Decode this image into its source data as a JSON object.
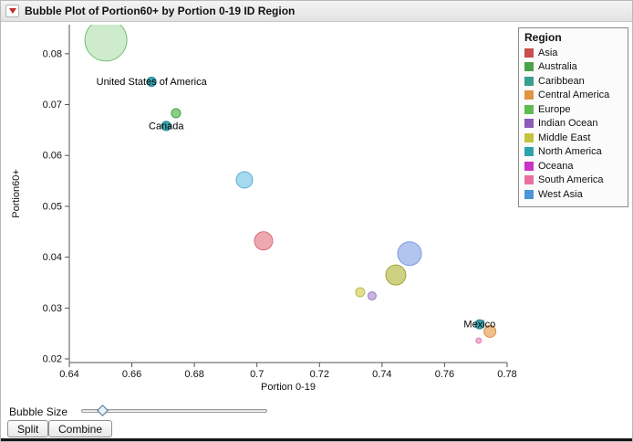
{
  "window": {
    "title": "Bubble Plot of Portion60+ by Portion 0-19 ID Region"
  },
  "controls": {
    "bubble_size_label": "Bubble Size",
    "slider_pos": 0.09,
    "split_label": "Split",
    "combine_label": "Combine"
  },
  "legend": {
    "title": "Region",
    "items": [
      {
        "label": "Asia",
        "color": "#c84d4d"
      },
      {
        "label": "Australia",
        "color": "#4ca14c"
      },
      {
        "label": "Caribbean",
        "color": "#389e8e"
      },
      {
        "label": "Central America",
        "color": "#e09542"
      },
      {
        "label": "Europe",
        "color": "#5fbc4e"
      },
      {
        "label": "Indian Ocean",
        "color": "#8e5bb8"
      },
      {
        "label": "Middle East",
        "color": "#c4c43e"
      },
      {
        "label": "North America",
        "color": "#2ea3ae"
      },
      {
        "label": "Oceana",
        "color": "#c635c6"
      },
      {
        "label": "South America",
        "color": "#e8709e"
      },
      {
        "label": "West Asia",
        "color": "#4c93d9"
      }
    ]
  },
  "chart_data": {
    "type": "scatter",
    "subtype": "bubble",
    "title": "Bubble Plot of Portion60+ by Portion 0-19 ID Region",
    "xlabel": "Portion 0-19",
    "ylabel": "Portion60+",
    "xlim": [
      0.64,
      0.78
    ],
    "ylim": [
      0.02,
      0.085
    ],
    "grid": false,
    "legend_position": "right",
    "x_ticks": [
      0.64,
      0.66,
      0.68,
      0.7,
      0.72,
      0.74,
      0.76,
      0.78
    ],
    "x_tick_labels": [
      "0.64",
      "0.66",
      "0.68",
      "0.7",
      "0.72",
      "0.74",
      "0.76",
      "0.78"
    ],
    "y_ticks": [
      0.02,
      0.03,
      0.04,
      0.05,
      0.06,
      0.07,
      0.08
    ],
    "y_tick_labels": [
      "0.02",
      "0.03",
      "0.04",
      "0.05",
      "0.06",
      "0.07",
      "0.08"
    ],
    "points": [
      {
        "x": 0.6517,
        "y": 0.0827,
        "r": 23,
        "region": "Europe",
        "label": "",
        "fill": "#9ed89e",
        "stroke": "#6fbf6f",
        "opacity": 0.5
      },
      {
        "x": 0.6663,
        "y": 0.0745,
        "r": 5,
        "region": "North America",
        "label": "United States of America",
        "fill": "#2b9faf",
        "stroke": "#17808e",
        "opacity": 0.9
      },
      {
        "x": 0.6741,
        "y": 0.0683,
        "r": 5,
        "region": "Europe",
        "label": "",
        "fill": "#6cc46c",
        "stroke": "#459e45",
        "opacity": 0.8
      },
      {
        "x": 0.671,
        "y": 0.0658,
        "r": 5,
        "region": "North America",
        "label": "Canada",
        "fill": "#2b9faf",
        "stroke": "#17808e",
        "opacity": 0.9
      },
      {
        "x": 0.696,
        "y": 0.0552,
        "r": 9,
        "region": "West Asia",
        "label": "",
        "fill": "#8ed0e8",
        "stroke": "#5fb0d4",
        "opacity": 0.8
      },
      {
        "x": 0.7021,
        "y": 0.0432,
        "r": 10,
        "region": "South America",
        "label": "",
        "fill": "#e9939b",
        "stroke": "#d66e79",
        "opacity": 0.8
      },
      {
        "x": 0.7488,
        "y": 0.0407,
        "r": 13,
        "region": "West Asia",
        "label": "",
        "fill": "#9fb7ec",
        "stroke": "#7e9bdc",
        "opacity": 0.8
      },
      {
        "x": 0.7444,
        "y": 0.0365,
        "r": 11,
        "region": "Middle East",
        "label": "",
        "fill": "#c2c464",
        "stroke": "#a3a53e",
        "opacity": 0.8
      },
      {
        "x": 0.733,
        "y": 0.0331,
        "r": 5,
        "region": "Middle East",
        "label": "",
        "fill": "#dfd97b",
        "stroke": "#bfb84f",
        "opacity": 0.85
      },
      {
        "x": 0.7368,
        "y": 0.0324,
        "r": 4.5,
        "region": "Indian Ocean",
        "label": "",
        "fill": "#bfa7df",
        "stroke": "#9c7fc4",
        "opacity": 0.85
      },
      {
        "x": 0.7712,
        "y": 0.0268,
        "r": 5,
        "region": "North America",
        "label": "Mexico",
        "fill": "#2b9faf",
        "stroke": "#17808e",
        "opacity": 0.9
      },
      {
        "x": 0.7745,
        "y": 0.0254,
        "r": 6.5,
        "region": "Central America",
        "label": "",
        "fill": "#edb477",
        "stroke": "#d98f42",
        "opacity": 0.85
      },
      {
        "x": 0.7709,
        "y": 0.0236,
        "r": 3,
        "region": "Oceana",
        "label": "",
        "fill": "#f2a9cd",
        "stroke": "#de7fb2",
        "opacity": 0.9
      }
    ]
  }
}
